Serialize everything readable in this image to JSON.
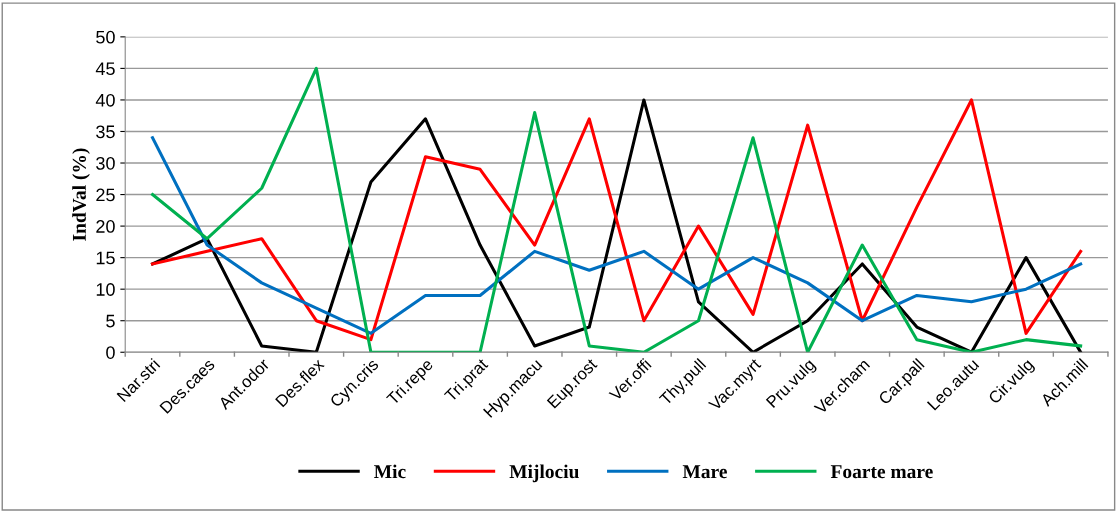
{
  "chart_data": {
    "type": "line",
    "ylabel": "IndVal (%)",
    "categories": [
      "Nar.stri",
      "Des.caes",
      "Ant.odor",
      "Des.flex",
      "Cyn.cris",
      "Tri.repe",
      "Tri.prat",
      "Hyp.macu",
      "Eup.rost",
      "Ver.offi",
      "Thy.pull",
      "Vac.myrt",
      "Pru.vulg",
      "Ver.cham",
      "Car.pall",
      "Leo.autu",
      "Cir.vulg",
      "Ach.mill"
    ],
    "series": [
      {
        "name": "Mic",
        "color": "#000000",
        "values": [
          14,
          18,
          1,
          0,
          27,
          37,
          17,
          1,
          4,
          40,
          8,
          0,
          5,
          14,
          4,
          0,
          15,
          0
        ]
      },
      {
        "name": "Mijlociu",
        "color": "#ff0000",
        "values": [
          14,
          16,
          18,
          5,
          2,
          31,
          29,
          17,
          37,
          5,
          20,
          6,
          36,
          5,
          23,
          40,
          3,
          16
        ]
      },
      {
        "name": "Mare",
        "color": "#0070c0",
        "values": [
          34,
          17,
          11,
          7,
          3,
          9,
          9,
          16,
          13,
          16,
          10,
          15,
          11,
          5,
          9,
          8,
          10,
          14
        ]
      },
      {
        "name": "Foarte mare",
        "color": "#00b050",
        "values": [
          25,
          18,
          26,
          45,
          0,
          0,
          0,
          38,
          1,
          0,
          5,
          34,
          0,
          17,
          2,
          0,
          2,
          1
        ]
      }
    ],
    "ylim": [
      0,
      50
    ],
    "yticks": [
      0,
      5,
      10,
      15,
      20,
      25,
      30,
      35,
      40,
      45,
      50
    ],
    "grid": "y",
    "legend": "bottom",
    "marker": "none",
    "line_style": "solid"
  }
}
